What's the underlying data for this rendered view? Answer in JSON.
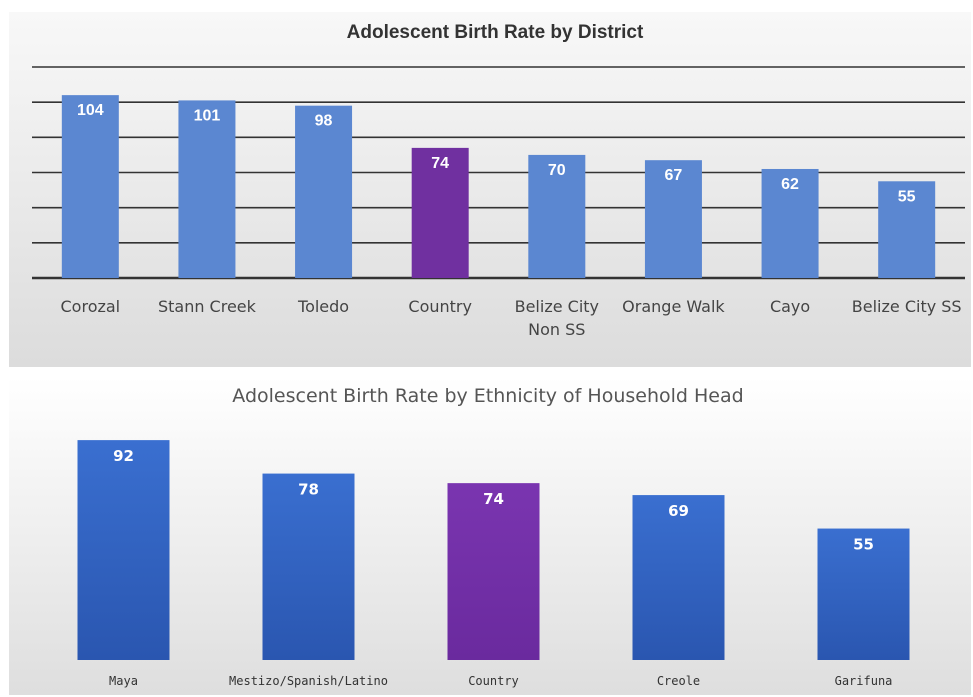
{
  "chart_data": [
    {
      "type": "bar",
      "title": "Adolescent Birth Rate by District",
      "categories": [
        "Corozal",
        "Stann Creek",
        "Toledo",
        "Country",
        "Belize City Non SS",
        "Orange Walk",
        "Cayo",
        "Belize City SS"
      ],
      "values": [
        104,
        101,
        98,
        74,
        70,
        67,
        62,
        55
      ],
      "highlight_category": "Country",
      "ylim": [
        0,
        120
      ],
      "grid": true,
      "data_labels": true,
      "colors": {
        "bar": "#5b87d1",
        "highlight": "#7030a0",
        "label": "#ffffff"
      }
    },
    {
      "type": "bar",
      "title": "Adolescent Birth Rate by Ethnicity of Household Head",
      "categories": [
        "Maya",
        "Mestizo/Spanish/Latino",
        "Country",
        "Creole",
        "Garifuna"
      ],
      "values": [
        92,
        78,
        74,
        69,
        55
      ],
      "highlight_category": "Country",
      "ylim": [
        0,
        100
      ],
      "grid": false,
      "data_labels": true,
      "colors": {
        "bar_top": "#4472c4",
        "bar_bottom": "#2e5cb8",
        "highlight": "#7030a0",
        "label": "#ffffff"
      }
    }
  ]
}
